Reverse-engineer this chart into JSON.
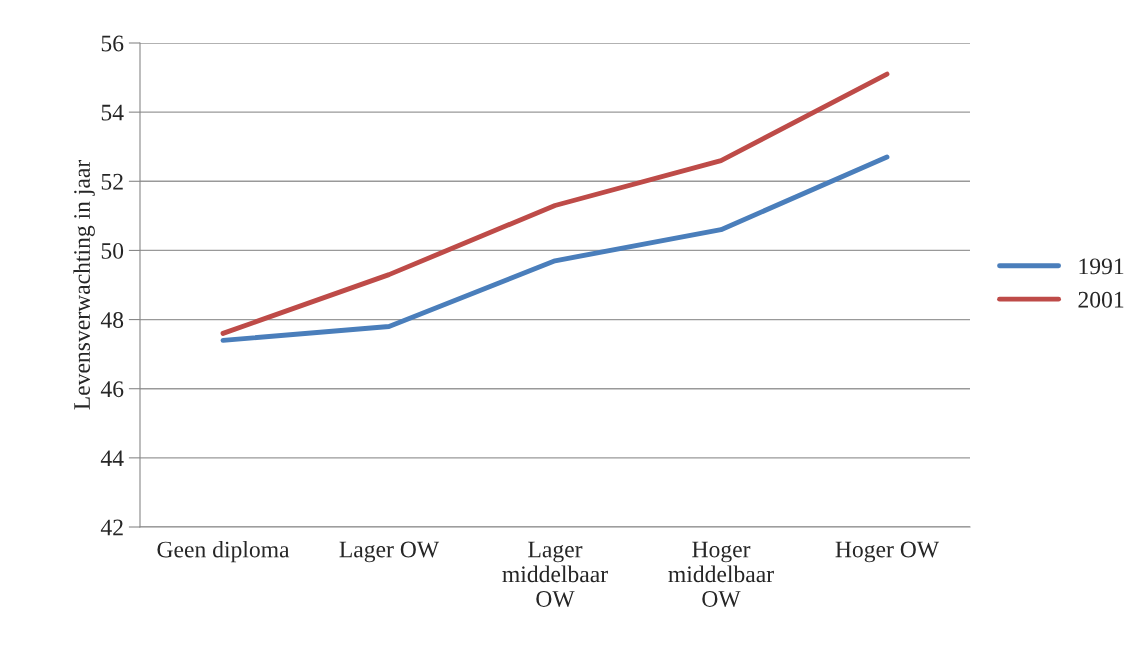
{
  "chart_data": {
    "type": "line",
    "ylabel": "Levensverwachting in jaar",
    "categories": [
      "Geen diploma",
      "Lager OW",
      "Lager\nmiddelbaar\nOW",
      "Hoger\nmiddelbaar\nOW",
      "Hoger OW"
    ],
    "series": [
      {
        "name": "1991",
        "color": "#4a7ebb",
        "values": [
          47.4,
          47.8,
          49.7,
          50.6,
          52.7
        ]
      },
      {
        "name": "2001",
        "color": "#be4b48",
        "values": [
          47.6,
          49.3,
          51.3,
          52.6,
          55.1
        ]
      }
    ],
    "ylim": [
      42,
      56
    ],
    "yticks": [
      42,
      44,
      46,
      48,
      50,
      52,
      54,
      56
    ],
    "grid": "y",
    "legend": "right",
    "marker": "none",
    "line_style": "solid"
  }
}
